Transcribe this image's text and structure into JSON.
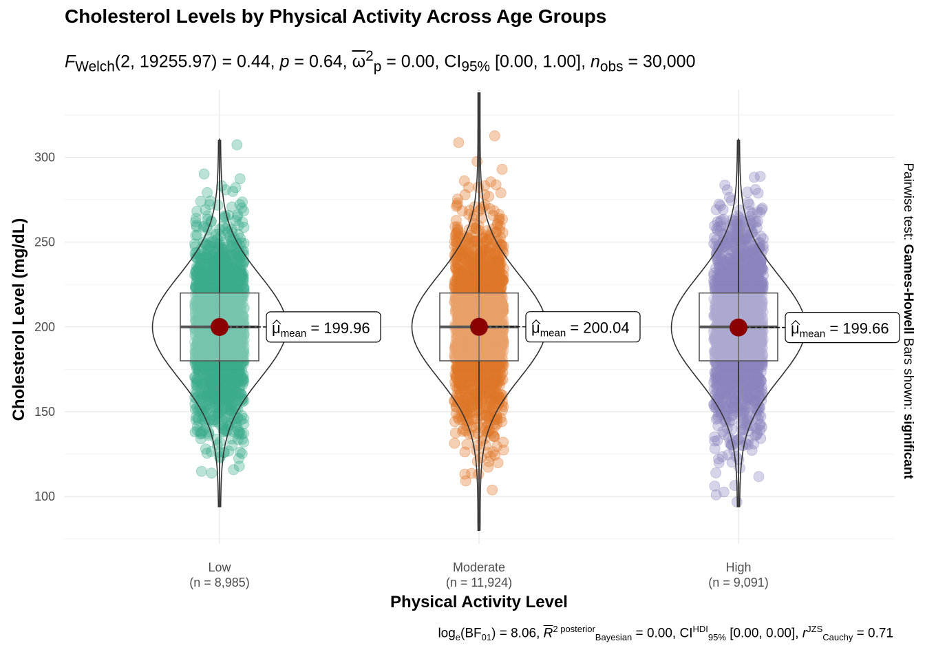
{
  "chart_data": {
    "type": "violin-box-scatter",
    "title": "Cholesterol Levels by Physical Activity Across Age Groups",
    "subtitle": {
      "text": "F Welch(2, 19255.97) = 0.44, p = 0.64, ω̂²p = 0.00, CI95% [0.00, 1.00], n obs = 30,000",
      "test_stat": "F",
      "test_sub": "Welch",
      "df": "(2, 19255.97)",
      "statistic": "0.44",
      "p_label": "p",
      "p_value": "0.64",
      "effect_symbol": "ω",
      "effect_sup": "2",
      "effect_sub": "p",
      "effect_value": "0.00",
      "ci_label": "CI",
      "ci_sub": "95%",
      "ci_value": "[0.00, 1.00]",
      "n_label": "n",
      "n_sub": "obs",
      "n_value": "30,000"
    },
    "xlabel": "Physical Activity Level",
    "ylabel": "Cholesterol Level (mg/dL)",
    "ylim": [
      72,
      340
    ],
    "yticks": [
      100,
      150,
      200,
      250,
      300
    ],
    "categories": [
      "Low",
      "Moderate",
      "High"
    ],
    "n_labels": [
      "(n = 8,985)",
      "(n = 11,924)",
      "(n = 9,091)"
    ],
    "series": [
      {
        "category": "Low",
        "color": "#1B9E77",
        "n": 8985,
        "mean": 199.96,
        "mean_label": "199.96",
        "box": {
          "q1": 180,
          "median": 200,
          "q3": 220
        },
        "min": 94,
        "max": 311
      },
      {
        "category": "Moderate",
        "color": "#D95F02",
        "n": 11924,
        "mean": 200.04,
        "mean_label": "200.04",
        "box": {
          "q1": 180,
          "median": 200,
          "q3": 220
        },
        "min": 80,
        "max": 338
      },
      {
        "category": "High",
        "color": "#7570B3",
        "n": 9091,
        "mean": 199.66,
        "mean_label": "199.66",
        "box": {
          "q1": 180,
          "median": 200,
          "q3": 220
        },
        "min": 94,
        "max": 311
      }
    ],
    "mean_symbol": "μ",
    "mean_sub": "mean",
    "mean_color": "#8B0000",
    "right_label_prefix": "Pairwise test: ",
    "right_label_test": "Games-Howell",
    "right_label_mid": " Bars shown: ",
    "right_label_sig": "significant",
    "caption": {
      "bf_text": "log",
      "bf_sub": "e",
      "bf_inner": "(BF",
      "bf_inner_sub": "01",
      "bf_close": ")",
      "bf_value": "8.06",
      "r2_symbol": "R",
      "r2_sup": "2 posterior",
      "r2_sub": "Bayesian",
      "r2_value": "0.00",
      "ci_label": "CI",
      "ci_sup": "HDI",
      "ci_sub": "95%",
      "ci_value": "[0.00, 0.00]",
      "r_symbol": "r",
      "r_sup": "JZS",
      "r_sub": "Cauchy",
      "r_value": "0.71"
    }
  }
}
